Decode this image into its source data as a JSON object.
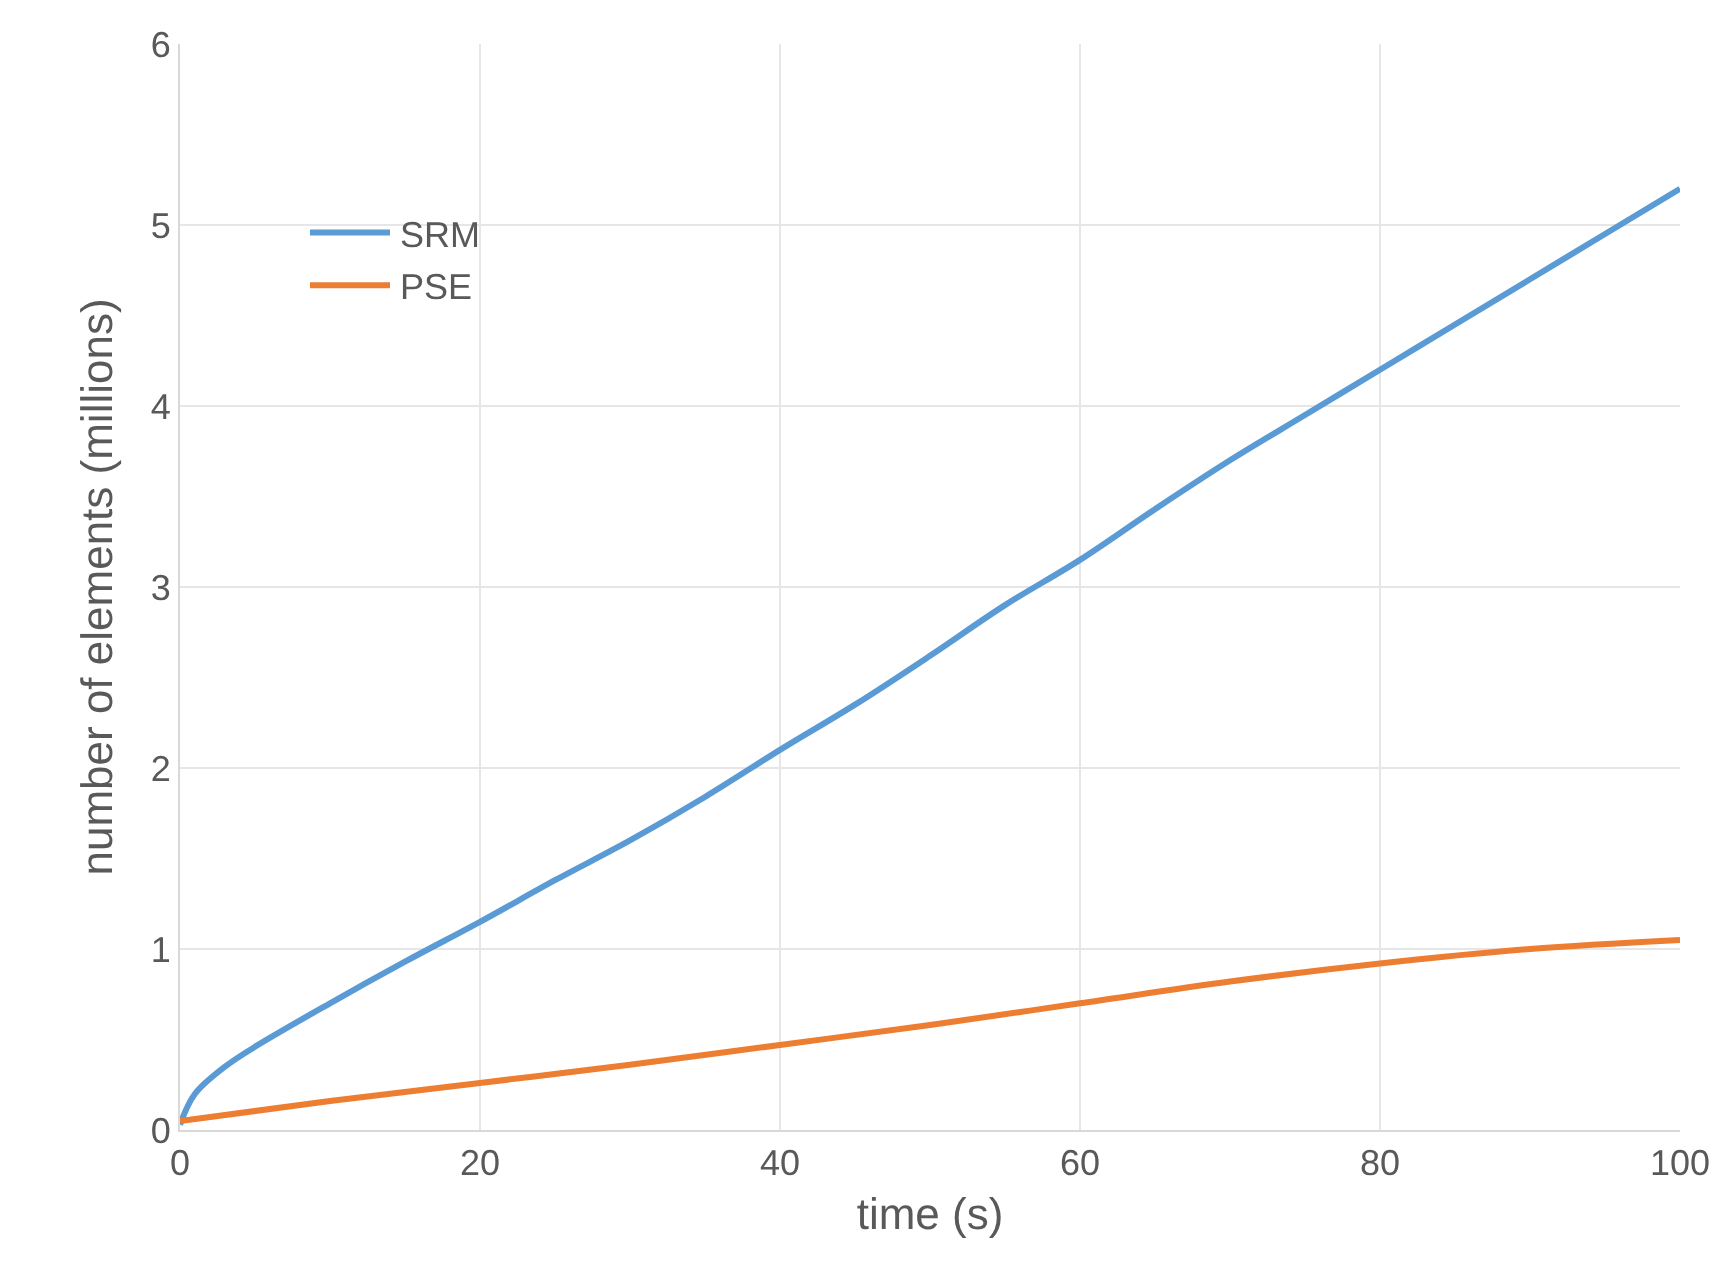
{
  "chart_data": {
    "type": "line",
    "xlabel": "time (s)",
    "ylabel": "number of elements (millions)",
    "xlim": [
      0,
      100
    ],
    "xticks": [
      0,
      20,
      40,
      60,
      80,
      100
    ],
    "ylim": [
      0,
      6
    ],
    "yticks": [
      0,
      1,
      2,
      3,
      4,
      5,
      6
    ],
    "grid": true,
    "legend": "top left",
    "marker": "none",
    "line_style": "solid",
    "series": [
      {
        "name": "SRM",
        "color": "#5b9bd5",
        "x": [
          0,
          1,
          3,
          5,
          10,
          15,
          20,
          25,
          30,
          35,
          40,
          45,
          50,
          55,
          60,
          65,
          70,
          75,
          80,
          85,
          90,
          95,
          100
        ],
        "values": [
          0.03,
          0.2,
          0.35,
          0.46,
          0.7,
          0.93,
          1.15,
          1.38,
          1.6,
          1.84,
          2.1,
          2.35,
          2.62,
          2.9,
          3.15,
          3.43,
          3.7,
          3.95,
          4.2,
          4.45,
          4.7,
          4.95,
          5.2
        ]
      },
      {
        "name": "PSE",
        "color": "#ed7d31",
        "x": [
          0,
          10,
          20,
          30,
          40,
          50,
          60,
          70,
          80,
          90,
          100
        ],
        "values": [
          0.05,
          0.16,
          0.26,
          0.36,
          0.47,
          0.58,
          0.7,
          0.82,
          0.92,
          1.0,
          1.05
        ]
      }
    ]
  }
}
